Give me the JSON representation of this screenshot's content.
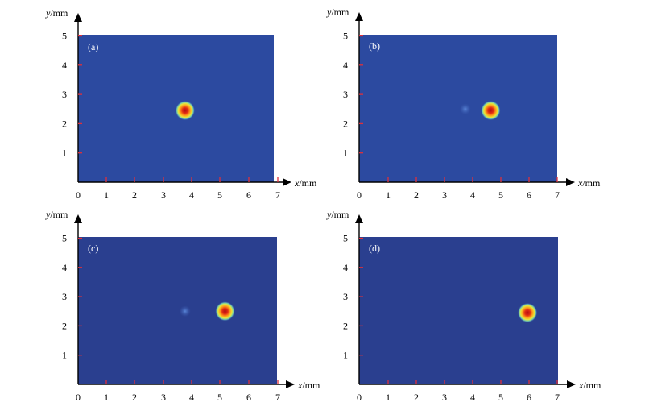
{
  "chart_data": [
    {
      "type": "heatmap",
      "panel_label": "(a)",
      "xlabel_var": "x",
      "xlabel_unit": "/mm",
      "ylabel_var": "y",
      "ylabel_unit": "/mm",
      "xlim": [
        0,
        7
      ],
      "ylim": [
        0,
        5
      ],
      "xticks": [
        "0",
        "1",
        "2",
        "3",
        "4",
        "5",
        "6",
        "7"
      ],
      "yticks": [
        "1",
        "2",
        "3",
        "4",
        "5"
      ],
      "peaks": [
        {
          "x": 3.75,
          "y": 2.45,
          "intensity": 1.0
        }
      ],
      "background_color": "#2c4aa0"
    },
    {
      "type": "heatmap",
      "panel_label": "(b)",
      "xlabel_var": "x",
      "xlabel_unit": "/mm",
      "ylabel_var": "y",
      "ylabel_unit": "/mm",
      "xlim": [
        0,
        7
      ],
      "ylim": [
        0,
        5
      ],
      "xticks": [
        "0",
        "1",
        "2",
        "3",
        "4",
        "5",
        "6",
        "7"
      ],
      "yticks": [
        "1",
        "2",
        "3",
        "4",
        "5"
      ],
      "peaks": [
        {
          "x": 4.65,
          "y": 2.45,
          "intensity": 1.0
        },
        {
          "x": 3.75,
          "y": 2.5,
          "intensity": 0.12
        }
      ],
      "background_color": "#2c4aa0"
    },
    {
      "type": "heatmap",
      "panel_label": "(c)",
      "xlabel_var": "x",
      "xlabel_unit": "/mm",
      "ylabel_var": "y",
      "ylabel_unit": "/mm",
      "xlim": [
        0,
        7
      ],
      "ylim": [
        0,
        5
      ],
      "xticks": [
        "0",
        "1",
        "2",
        "3",
        "4",
        "5",
        "6",
        "7"
      ],
      "yticks": [
        "1",
        "2",
        "3",
        "4",
        "5"
      ],
      "peaks": [
        {
          "x": 5.15,
          "y": 2.5,
          "intensity": 1.0
        },
        {
          "x": 3.75,
          "y": 2.5,
          "intensity": 0.2
        }
      ],
      "background_color": "#2a3f8f"
    },
    {
      "type": "heatmap",
      "panel_label": "(d)",
      "xlabel_var": "x",
      "xlabel_unit": "/mm",
      "ylabel_var": "y",
      "ylabel_unit": "/mm",
      "xlim": [
        0,
        7
      ],
      "ylim": [
        0,
        5
      ],
      "xticks": [
        "0",
        "1",
        "2",
        "3",
        "4",
        "5",
        "6",
        "7"
      ],
      "yticks": [
        "1",
        "2",
        "3",
        "4",
        "5"
      ],
      "peaks": [
        {
          "x": 5.95,
          "y": 2.45,
          "intensity": 1.0
        }
      ],
      "background_color": "#2a3f8f"
    }
  ],
  "colors": {
    "axis": "#000000",
    "tick_red": "#e0303a",
    "peak_core": "#b01010",
    "peak_ring": "#ff9a1a",
    "peak_halo": "#7fe0b0"
  }
}
